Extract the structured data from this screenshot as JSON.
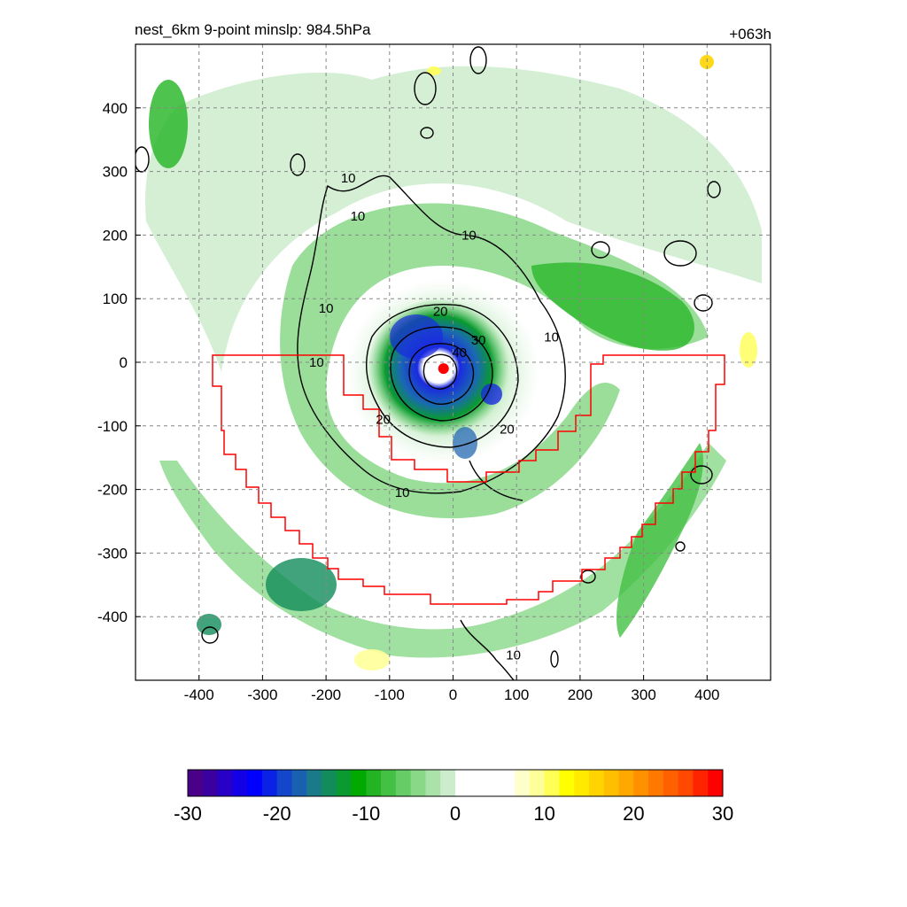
{
  "chart_data": {
    "type": "heatmap",
    "title_left": "nest_6km  9-point minslp: 984.5hPa",
    "title_right": "+063h",
    "xlim": [
      -500,
      500
    ],
    "ylim": [
      -500,
      500
    ],
    "x_ticks": [
      -400,
      -300,
      -200,
      -100,
      0,
      100,
      200,
      300,
      400
    ],
    "y_ticks": [
      400,
      300,
      200,
      100,
      0,
      -100,
      -200,
      -300,
      -400
    ],
    "grid": true,
    "grid_style": "dashed",
    "center_marker": {
      "x": -15,
      "y": -10,
      "color": "#ff0000"
    },
    "contour_labels": [
      {
        "text": "10",
        "x": -165,
        "y": 290
      },
      {
        "text": "10",
        "x": -150,
        "y": 230
      },
      {
        "text": "10",
        "x": 25,
        "y": 200
      },
      {
        "text": "10",
        "x": -200,
        "y": 85
      },
      {
        "text": "10",
        "x": -215,
        "y": 0
      },
      {
        "text": "10",
        "x": 155,
        "y": 40
      },
      {
        "text": "20",
        "x": -20,
        "y": 80
      },
      {
        "text": "30",
        "x": 40,
        "y": 35
      },
      {
        "text": "40",
        "x": 10,
        "y": 15
      },
      {
        "text": "20",
        "x": -110,
        "y": -90
      },
      {
        "text": "20",
        "x": 85,
        "y": -105
      },
      {
        "text": "10",
        "x": -80,
        "y": -205
      },
      {
        "text": "10",
        "x": 95,
        "y": -460
      }
    ],
    "colorbar": {
      "range": [
        -30,
        30
      ],
      "tick_values": [
        -30,
        -20,
        -10,
        0,
        10,
        20,
        30
      ],
      "tick_labels": [
        "-30",
        "-20",
        "-10",
        "0",
        "10",
        "20",
        "30"
      ],
      "colors": [
        "#4a0088",
        "#3a00a0",
        "#2800c8",
        "#1400e6",
        "#0000ff",
        "#0a22e6",
        "#1446cc",
        "#1a60b0",
        "#1a7a8a",
        "#128c5a",
        "#0a9a30",
        "#00aa00",
        "#22b422",
        "#44c044",
        "#66cc66",
        "#88d888",
        "#aae2aa",
        "#cceccc",
        "#ffffff",
        "#ffffff",
        "#ffffff",
        "#ffffff",
        "#ffffcc",
        "#ffff99",
        "#ffff55",
        "#ffff00",
        "#ffea00",
        "#ffd400",
        "#ffbe00",
        "#ffa800",
        "#ff9000",
        "#ff7800",
        "#ff6000",
        "#ff4800",
        "#ff2400",
        "#ff0000"
      ]
    }
  }
}
